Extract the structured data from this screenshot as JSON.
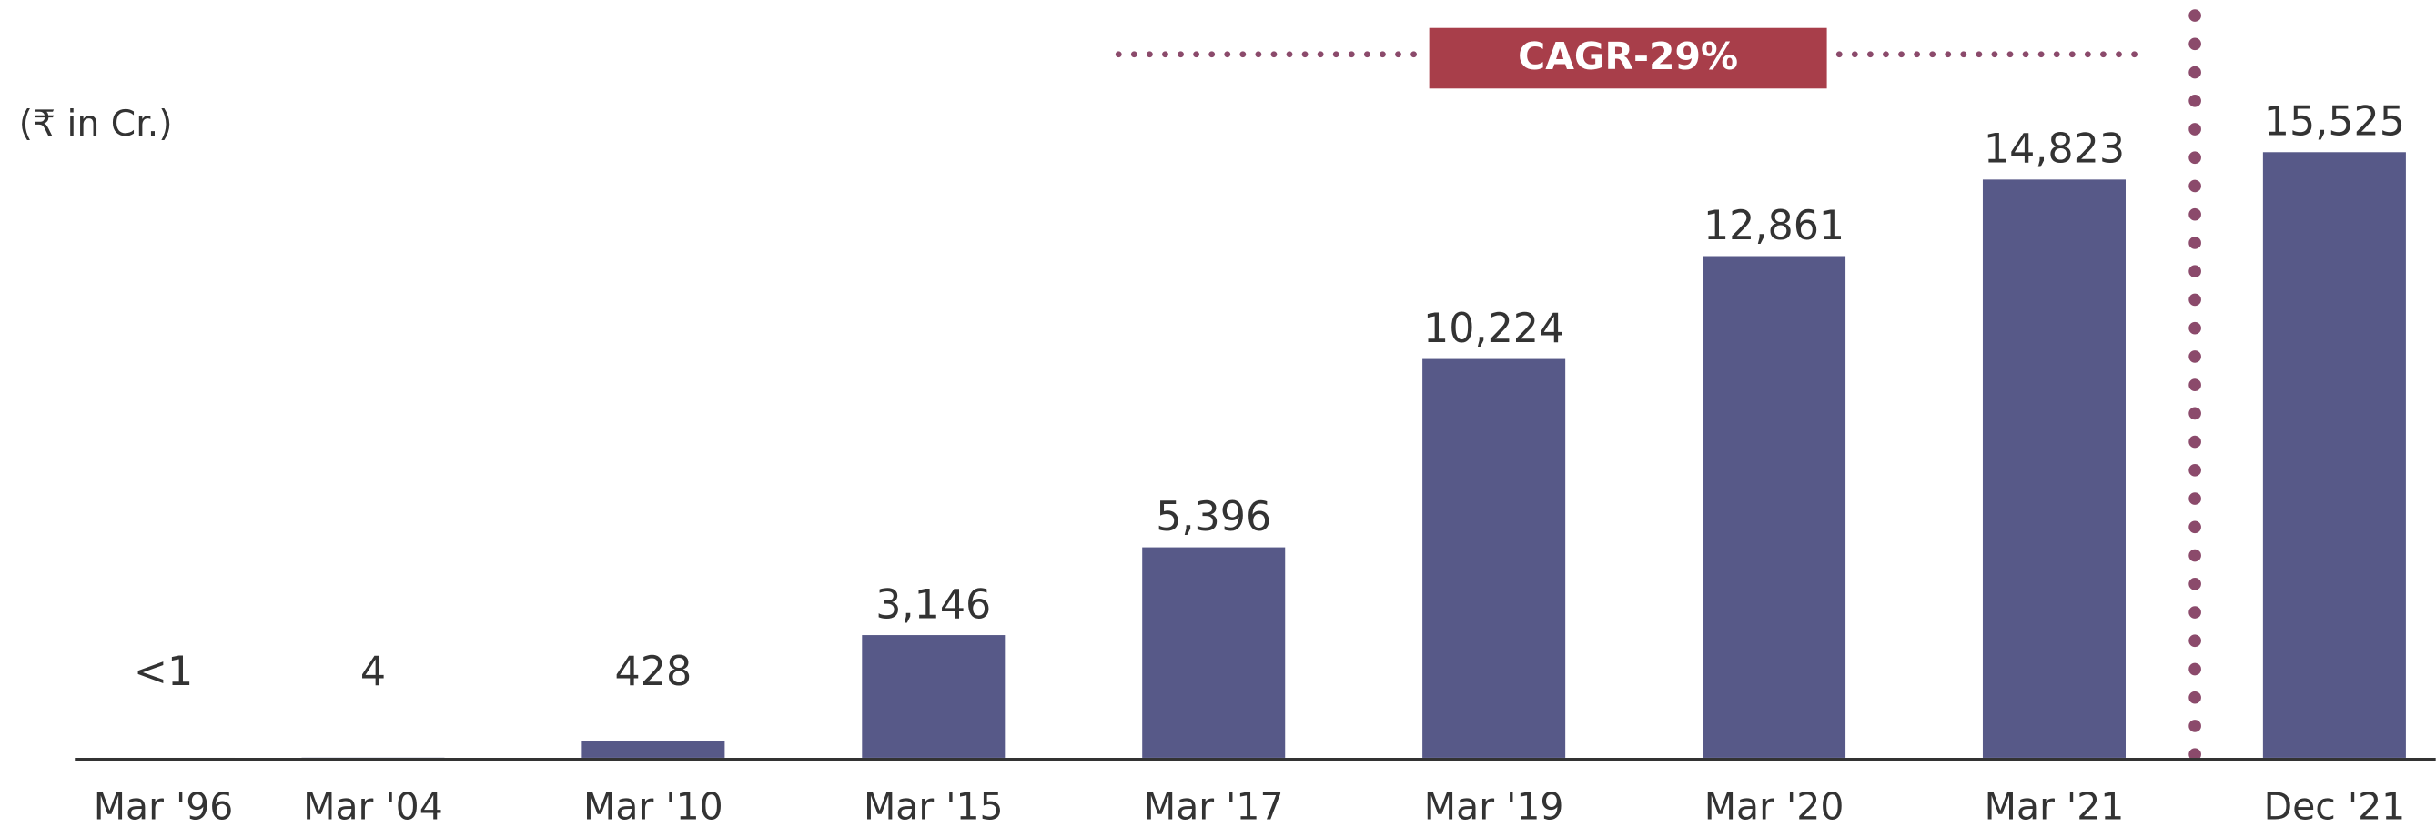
{
  "chart_data": {
    "type": "bar",
    "unit_label": "(₹ in Cr.)",
    "annotation": "CAGR-29%",
    "categories": [
      "Mar '96",
      "Mar '04",
      "Mar '10",
      "Mar '15",
      "Mar '17",
      "Mar '19",
      "Mar '20",
      "Mar '21",
      "Dec '21"
    ],
    "values": [
      0.5,
      4,
      428,
      3146,
      5396,
      10224,
      12861,
      14823,
      15525
    ],
    "value_labels": [
      "<1",
      "4",
      "428",
      "3,146",
      "5,396",
      "10,224",
      "12,861",
      "14,823",
      "15,525"
    ],
    "color": "#575988",
    "annotation_color": "#a83e4a",
    "divider_color": "#8b4a6b"
  }
}
